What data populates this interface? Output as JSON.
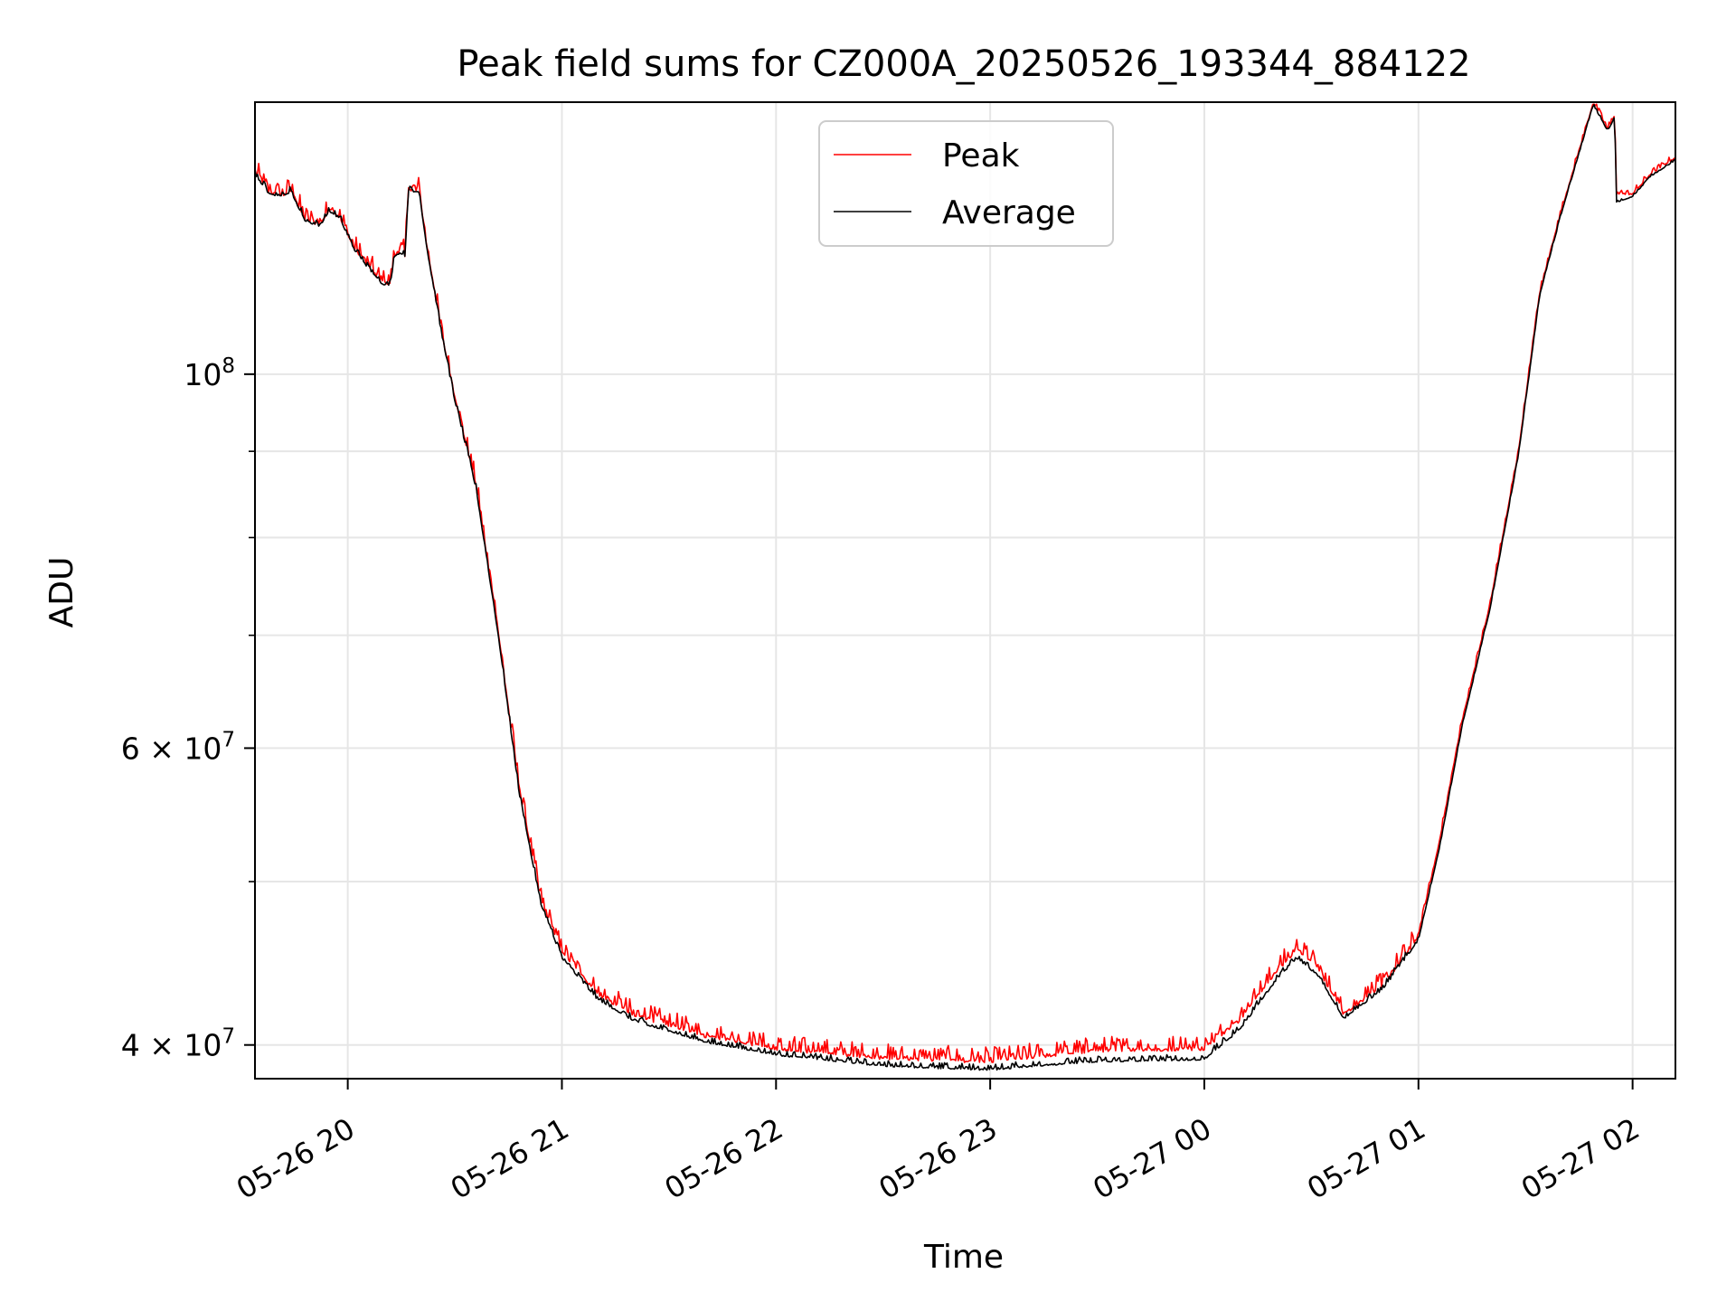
{
  "chart_data": {
    "type": "line",
    "title": "Peak field sums for CZ000A_20250526_193344_884122",
    "xlabel": "Time",
    "ylabel": "ADU",
    "yscale": "log",
    "grid": true,
    "legend_position": "top-center",
    "xlim": [
      "2025-05-26 19:34",
      "2025-05-27 02:12"
    ],
    "ylim": [
      38200000,
      145000000
    ],
    "x_ticks": [
      {
        "value": "2025-05-26 20:00",
        "label": "05-26 20"
      },
      {
        "value": "2025-05-26 21:00",
        "label": "05-26 21"
      },
      {
        "value": "2025-05-26 22:00",
        "label": "05-26 22"
      },
      {
        "value": "2025-05-26 23:00",
        "label": "05-26 23"
      },
      {
        "value": "2025-05-27 00:00",
        "label": "05-27 00"
      },
      {
        "value": "2025-05-27 01:00",
        "label": "05-27 01"
      },
      {
        "value": "2025-05-27 02:00",
        "label": "05-27 02"
      }
    ],
    "y_ticks_major": [
      {
        "value": 40000000,
        "label": "4 × 10",
        "exp": "7"
      },
      {
        "value": 60000000,
        "label": "6 × 10",
        "exp": "7"
      },
      {
        "value": 100000000,
        "label": "10",
        "exp": "8"
      }
    ],
    "y_ticks_minor": [
      50000000,
      70000000,
      80000000,
      90000000
    ],
    "colors": {
      "peak": "#ff0000",
      "average": "#000000",
      "grid": "#e6e6e6"
    },
    "series": [
      {
        "name": "Peak",
        "color": "#ff0000",
        "noise": 0.02,
        "points": [
          [
            "2025-05-26 19:34",
            132000000
          ],
          [
            "2025-05-26 19:38",
            128500000
          ],
          [
            "2025-05-26 19:42",
            128000000
          ],
          [
            "2025-05-26 19:44",
            129000000
          ],
          [
            "2025-05-26 19:48",
            124000000
          ],
          [
            "2025-05-26 19:52",
            123000000
          ],
          [
            "2025-05-26 19:55",
            125500000
          ],
          [
            "2025-05-26 19:58",
            124000000
          ],
          [
            "2025-05-26 20:02",
            119000000
          ],
          [
            "2025-05-26 20:06",
            116000000
          ],
          [
            "2025-05-26 20:10",
            113500000
          ],
          [
            "2025-05-26 20:12",
            113500000
          ],
          [
            "2025-05-26 20:13",
            118000000
          ],
          [
            "2025-05-26 20:15",
            118500000
          ],
          [
            "2025-05-26 20:16",
            118000000
          ],
          [
            "2025-05-26 20:17",
            129000000
          ],
          [
            "2025-05-26 20:20",
            129000000
          ],
          [
            "2025-05-26 20:22",
            120000000
          ],
          [
            "2025-05-26 20:26",
            107000000
          ],
          [
            "2025-05-26 20:30",
            97000000
          ],
          [
            "2025-05-26 20:36",
            86000000
          ],
          [
            "2025-05-26 20:42",
            71000000
          ],
          [
            "2025-05-26 20:48",
            57000000
          ],
          [
            "2025-05-26 20:54",
            49000000
          ],
          [
            "2025-05-26 21:00",
            45500000
          ],
          [
            "2025-05-26 21:10",
            43000000
          ],
          [
            "2025-05-26 21:20",
            41800000
          ],
          [
            "2025-05-26 21:40",
            40600000
          ],
          [
            "2025-05-26 22:00",
            39900000
          ],
          [
            "2025-05-26 22:30",
            39400000
          ],
          [
            "2025-05-26 23:00",
            39200000
          ],
          [
            "2025-05-26 23:15",
            39500000
          ],
          [
            "2025-05-26 23:30",
            39800000
          ],
          [
            "2025-05-27 00:00",
            39900000
          ],
          [
            "2025-05-27 00:10",
            41500000
          ],
          [
            "2025-05-27 00:20",
            44300000
          ],
          [
            "2025-05-27 00:26",
            45700000
          ],
          [
            "2025-05-27 00:32",
            44500000
          ],
          [
            "2025-05-27 00:39",
            41800000
          ],
          [
            "2025-05-27 00:50",
            43500000
          ],
          [
            "2025-05-27 01:00",
            46500000
          ],
          [
            "2025-05-27 01:06",
            53000000
          ],
          [
            "2025-05-27 01:12",
            62000000
          ],
          [
            "2025-05-27 01:20",
            73000000
          ],
          [
            "2025-05-27 01:28",
            90000000
          ],
          [
            "2025-05-27 01:34",
            112000000
          ],
          [
            "2025-05-27 01:40",
            125000000
          ],
          [
            "2025-05-27 01:46",
            138000000
          ],
          [
            "2025-05-27 01:49",
            145000000
          ],
          [
            "2025-05-27 01:53",
            140000000
          ],
          [
            "2025-05-27 01:55",
            142500000
          ],
          [
            "2025-05-27 01:55.5",
            128000000
          ],
          [
            "2025-05-27 02:00",
            128000000
          ],
          [
            "2025-05-27 02:05",
            131500000
          ],
          [
            "2025-05-27 02:12",
            134500000
          ]
        ]
      },
      {
        "name": "Average",
        "color": "#000000",
        "noise": 0.008,
        "points": [
          [
            "2025-05-26 19:34",
            131500000
          ],
          [
            "2025-05-26 19:38",
            128000000
          ],
          [
            "2025-05-26 19:42",
            127500000
          ],
          [
            "2025-05-26 19:44",
            128500000
          ],
          [
            "2025-05-26 19:48",
            123500000
          ],
          [
            "2025-05-26 19:52",
            122500000
          ],
          [
            "2025-05-26 19:55",
            125000000
          ],
          [
            "2025-05-26 19:58",
            123500000
          ],
          [
            "2025-05-26 20:02",
            118500000
          ],
          [
            "2025-05-26 20:06",
            115500000
          ],
          [
            "2025-05-26 20:10",
            113000000
          ],
          [
            "2025-05-26 20:12",
            113000000
          ],
          [
            "2025-05-26 20:13",
            117500000
          ],
          [
            "2025-05-26 20:15",
            118000000
          ],
          [
            "2025-05-26 20:16",
            117500000
          ],
          [
            "2025-05-26 20:17",
            128500000
          ],
          [
            "2025-05-26 20:20",
            128500000
          ],
          [
            "2025-05-26 20:22",
            119500000
          ],
          [
            "2025-05-26 20:26",
            106500000
          ],
          [
            "2025-05-26 20:30",
            96500000
          ],
          [
            "2025-05-26 20:36",
            85500000
          ],
          [
            "2025-05-26 20:42",
            70500000
          ],
          [
            "2025-05-26 20:48",
            56500000
          ],
          [
            "2025-05-26 20:54",
            48600000
          ],
          [
            "2025-05-26 21:00",
            45100000
          ],
          [
            "2025-05-26 21:10",
            42600000
          ],
          [
            "2025-05-26 21:20",
            41400000
          ],
          [
            "2025-05-26 21:40",
            40200000
          ],
          [
            "2025-05-26 22:00",
            39500000
          ],
          [
            "2025-05-26 22:30",
            38900000
          ],
          [
            "2025-05-26 23:00",
            38700000
          ],
          [
            "2025-05-26 23:15",
            38950000
          ],
          [
            "2025-05-26 23:30",
            39150000
          ],
          [
            "2025-05-27 00:00",
            39250000
          ],
          [
            "2025-05-27 00:10",
            40900000
          ],
          [
            "2025-05-27 00:20",
            43700000
          ],
          [
            "2025-05-27 00:26",
            45100000
          ],
          [
            "2025-05-27 00:32",
            44000000
          ],
          [
            "2025-05-27 00:39",
            41500000
          ],
          [
            "2025-05-27 00:50",
            43200000
          ],
          [
            "2025-05-27 01:00",
            46200000
          ],
          [
            "2025-05-27 01:06",
            52500000
          ],
          [
            "2025-05-27 01:12",
            61500000
          ],
          [
            "2025-05-27 01:20",
            72500000
          ],
          [
            "2025-05-27 01:28",
            89500000
          ],
          [
            "2025-05-27 01:34",
            111500000
          ],
          [
            "2025-05-27 01:40",
            124500000
          ],
          [
            "2025-05-27 01:46",
            137500000
          ],
          [
            "2025-05-27 01:49",
            144500000
          ],
          [
            "2025-05-27 01:53",
            139500000
          ],
          [
            "2025-05-27 01:55",
            142000000
          ],
          [
            "2025-05-27 01:55.5",
            126500000
          ],
          [
            "2025-05-27 02:00",
            127500000
          ],
          [
            "2025-05-27 02:05",
            131000000
          ],
          [
            "2025-05-27 02:12",
            134000000
          ]
        ]
      }
    ]
  }
}
